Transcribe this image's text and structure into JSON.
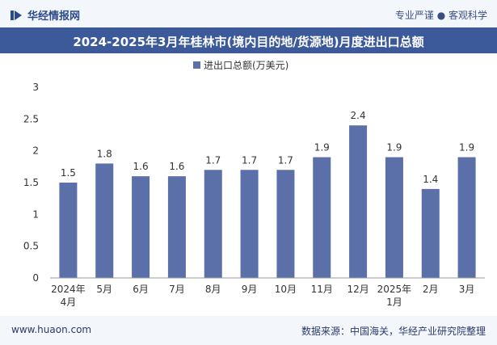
{
  "header": {
    "brand": "华经情报网",
    "tagline": "专业严谨 ● 客观科学"
  },
  "footer": {
    "website": "www.huaon.com",
    "source": "数据来源：中国海关，华经产业研究院整理"
  },
  "colors": {
    "bar": "#5b6fa8",
    "title_bg": "#3c5a9a",
    "header_bg": "#f3f6fb"
  },
  "chart_data": {
    "type": "bar",
    "title": "2024-2025年3月年桂林市(境内目的地/货源地)月度进出口总额",
    "legend": "进出口总额(万美元)",
    "legend_position": "top-center",
    "categories": [
      [
        "2024年",
        "4月"
      ],
      [
        "5月"
      ],
      [
        "6月"
      ],
      [
        "7月"
      ],
      [
        "8月"
      ],
      [
        "9月"
      ],
      [
        "10月"
      ],
      [
        "11月"
      ],
      [
        "12月"
      ],
      [
        "2025年",
        "1月"
      ],
      [
        "2月"
      ],
      [
        "3月"
      ]
    ],
    "series": [
      {
        "name": "进出口总额(万美元)",
        "values": [
          1.5,
          1.8,
          1.6,
          1.6,
          1.7,
          1.7,
          1.7,
          1.9,
          2.4,
          1.9,
          1.4,
          1.9
        ]
      }
    ],
    "data_labels": [
      "1.5",
      "1.8",
      "1.6",
      "1.6",
      "1.7",
      "1.7",
      "1.7",
      "1.9",
      "2.4",
      "1.9",
      "1.4",
      "1.9"
    ],
    "ylim": [
      0,
      3
    ],
    "yticks": [
      "0",
      "0.5",
      "1",
      "1.5",
      "2",
      "2.5",
      "3"
    ],
    "xlabel": "",
    "ylabel": "",
    "grid": false
  }
}
